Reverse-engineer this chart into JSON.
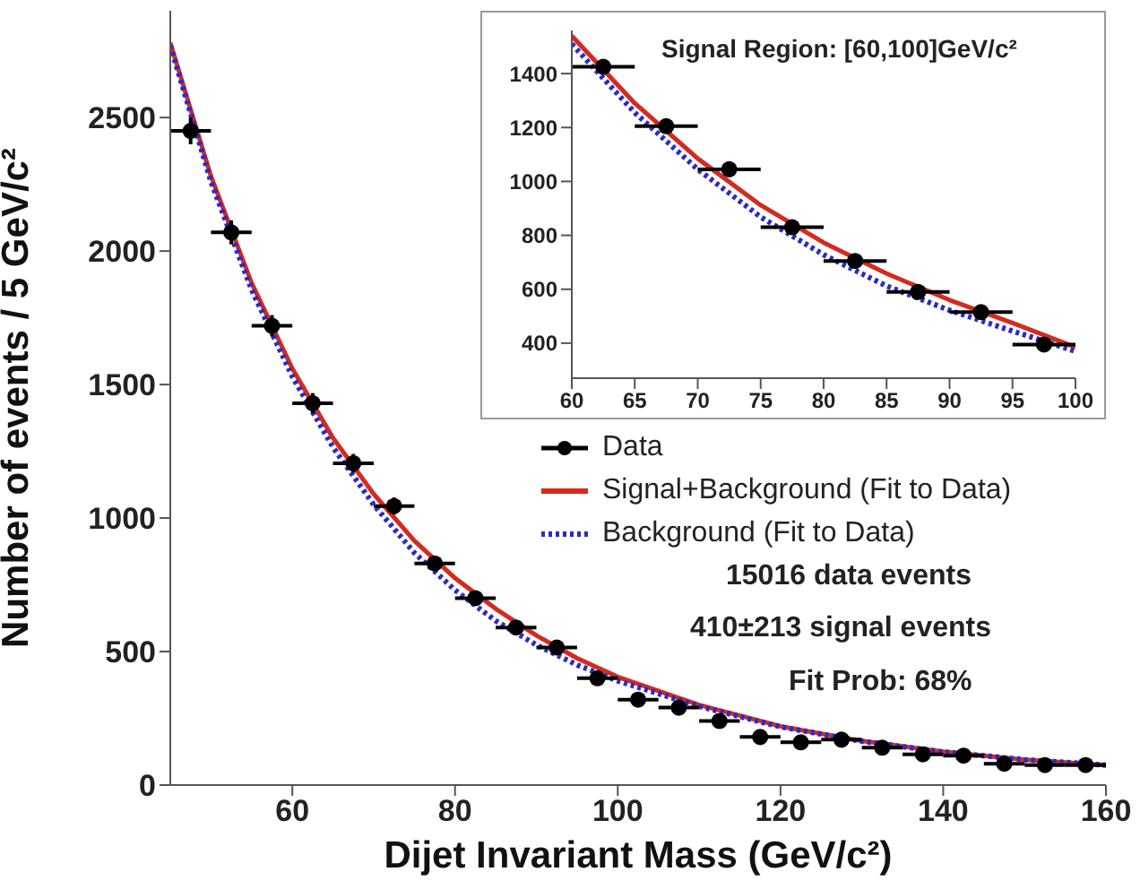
{
  "chart_data": [
    {
      "type": "scatter",
      "xlabel": "Dijet Invariant Mass (GeV/c²)",
      "ylabel": "Number of events / 5 GeV/c²",
      "xlim": [
        45,
        160
      ],
      "xticks": [
        60,
        80,
        100,
        120,
        140,
        160
      ],
      "ylim": [
        0,
        2900
      ],
      "yticks": [
        0,
        500,
        1000,
        1500,
        2000,
        2500
      ],
      "legend": "right",
      "annotations": [
        "15016 data events",
        "410±213 signal events",
        "Fit Prob: 68%"
      ],
      "series": [
        {
          "name": "Data",
          "color": "#000000",
          "marker": "circle",
          "x": [
            47.5,
            52.5,
            57.5,
            62.5,
            67.5,
            72.5,
            77.5,
            82.5,
            87.5,
            92.5,
            97.5,
            102.5,
            107.5,
            112.5,
            117.5,
            122.5,
            127.5,
            132.5,
            137.5,
            142.5,
            147.5,
            152.5,
            157.5
          ],
          "values": [
            2450,
            2070,
            1720,
            1430,
            1205,
            1045,
            830,
            700,
            590,
            515,
            400,
            320,
            290,
            240,
            180,
            160,
            170,
            140,
            115,
            110,
            80,
            75,
            75
          ],
          "errors": [
            50,
            45,
            40,
            38,
            35,
            32,
            29,
            26,
            24,
            23,
            20,
            18,
            17,
            15,
            13,
            13,
            13,
            12,
            11,
            10,
            9,
            9,
            9
          ],
          "xerrors": [
            2.5,
            2.5,
            2.5,
            2.5,
            2.5,
            2.5,
            2.5,
            2.5,
            2.5,
            2.5,
            2.5,
            2.5,
            2.5,
            2.5,
            2.5,
            2.5,
            2.5,
            2.5,
            2.5,
            2.5,
            2.5,
            2.5,
            2.5
          ]
        },
        {
          "type": "line",
          "name": "Signal+Background (Fit to Data)",
          "color": "#d42a20",
          "line_style": "solid",
          "x": [
            45,
            50,
            55,
            60,
            65,
            70,
            75,
            80,
            85,
            90,
            95,
            100,
            110,
            120,
            130,
            140,
            150,
            160
          ],
          "values": [
            2780,
            2280,
            1880,
            1560,
            1300,
            1090,
            915,
            775,
            660,
            560,
            475,
            405,
            300,
            220,
            165,
            125,
            95,
            75
          ]
        },
        {
          "type": "line",
          "name": "Background (Fit to Data)",
          "color": "#2a2ac8",
          "line_style": "dotted",
          "x": [
            45,
            50,
            55,
            60,
            65,
            70,
            75,
            80,
            85,
            90,
            95,
            100,
            110,
            120,
            130,
            140,
            150,
            160
          ],
          "values": [
            2770,
            2260,
            1855,
            1530,
            1265,
            1050,
            870,
            730,
            615,
            525,
            450,
            390,
            295,
            218,
            164,
            124,
            95,
            75
          ]
        }
      ]
    },
    {
      "type": "scatter",
      "title": "Signal Region: [60,100]GeV/c²",
      "xlim": [
        60,
        100
      ],
      "xticks": [
        60,
        65,
        70,
        75,
        80,
        85,
        90,
        95,
        100
      ],
      "ylim": [
        270,
        1560
      ],
      "yticks": [
        400,
        600,
        800,
        1000,
        1200,
        1400
      ],
      "series": [
        {
          "color": "#000000",
          "marker": "circle",
          "x": [
            62.5,
            67.5,
            72.5,
            77.5,
            82.5,
            87.5,
            92.5,
            97.5
          ],
          "values": [
            1425,
            1205,
            1045,
            830,
            705,
            590,
            515,
            395
          ],
          "xerrors": [
            2.5,
            2.5,
            2.5,
            2.5,
            2.5,
            2.5,
            2.5,
            2.5
          ]
        },
        {
          "type": "line",
          "color": "#d42a20",
          "line_style": "solid",
          "x": [
            60,
            65,
            70,
            75,
            80,
            85,
            90,
            95,
            100
          ],
          "values": [
            1540,
            1290,
            1085,
            912,
            773,
            658,
            560,
            475,
            385
          ]
        },
        {
          "type": "line",
          "color": "#2a2ac8",
          "line_style": "dotted",
          "x": [
            60,
            65,
            70,
            75,
            80,
            85,
            90,
            95,
            100
          ],
          "values": [
            1510,
            1255,
            1045,
            868,
            728,
            612,
            522,
            445,
            370
          ]
        }
      ]
    }
  ]
}
